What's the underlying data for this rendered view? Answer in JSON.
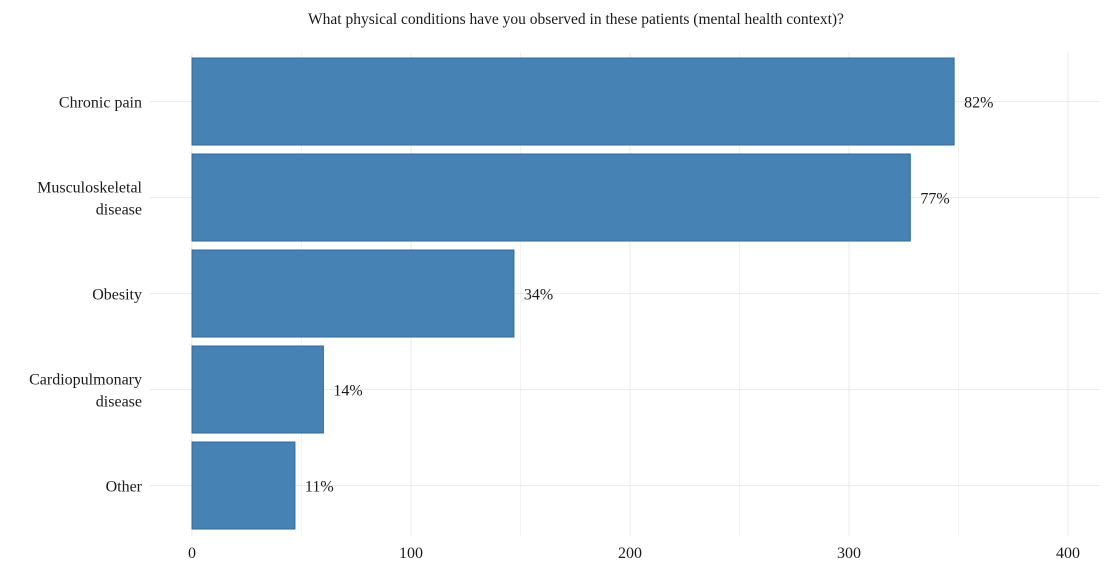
{
  "chart_data": {
    "type": "bar",
    "orientation": "horizontal",
    "title": "What physical conditions have you observed in these patients (mental health context)?",
    "xlabel": "",
    "ylabel": "",
    "categories": [
      [
        "Chronic pain"
      ],
      [
        "Musculoskeletal",
        "disease"
      ],
      [
        "Obesity"
      ],
      [
        "Cardiopulmonary",
        "disease"
      ],
      [
        "Other"
      ]
    ],
    "values": [
      348,
      328,
      147,
      60,
      47
    ],
    "data_labels": [
      "82%",
      "77%",
      "34%",
      "14%",
      "11%"
    ],
    "xlim": [
      0,
      400
    ],
    "x_ticks": [
      0,
      100,
      200,
      300,
      400
    ],
    "x_tick_labels": [
      "0",
      "100",
      "200",
      "300",
      "400"
    ],
    "grid": true,
    "legend": "none",
    "bar_color": "#4682b4",
    "bar_border_color": "#2f6a9a",
    "grid_color": "#ebebeb",
    "background": "#ffffff"
  }
}
